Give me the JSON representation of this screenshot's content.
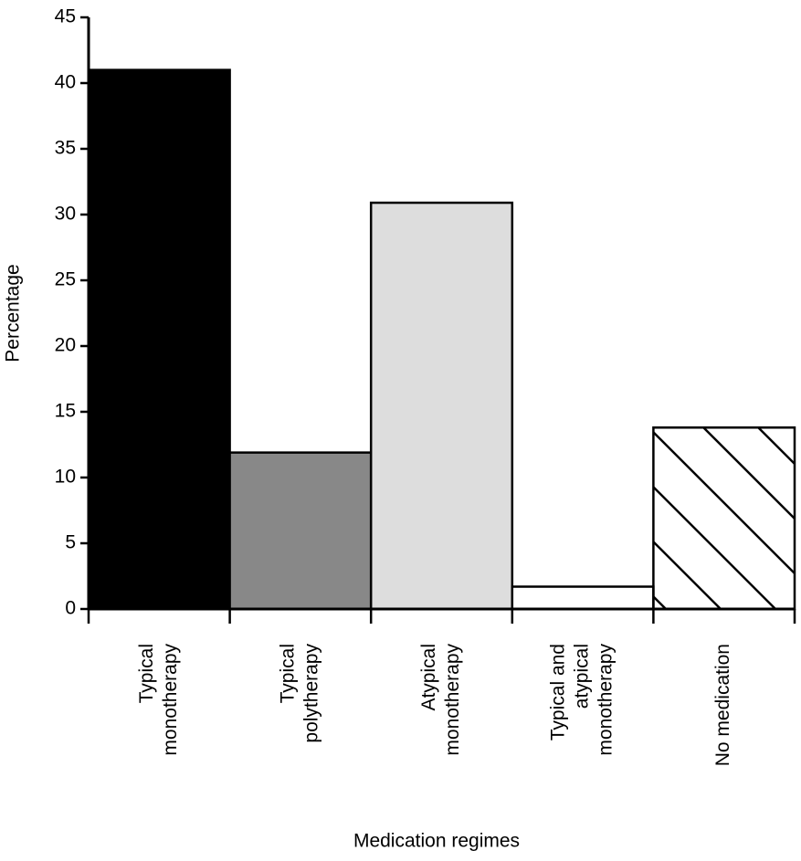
{
  "chart_data": {
    "type": "bar",
    "x_label": "Medication regimes",
    "y_label": "Percentage",
    "categories": [
      [
        "Typical",
        "monotherapy"
      ],
      [
        "Typical",
        "polytherapy"
      ],
      [
        "Atypical",
        "monotherapy"
      ],
      [
        "Typical and",
        "atypical",
        "monotherapy"
      ],
      [
        "No medication"
      ]
    ],
    "values": [
      41,
      11.9,
      30.9,
      1.7,
      13.8
    ],
    "colors": [
      "#000000",
      "#888888",
      "#dddddd",
      "#ffffff",
      "#ffffff"
    ],
    "hatch": [
      false,
      false,
      false,
      false,
      true
    ],
    "ylim": [
      0,
      45
    ],
    "yticks": [
      0,
      5,
      10,
      15,
      20,
      25,
      30,
      35,
      40,
      45
    ],
    "grid": false
  }
}
